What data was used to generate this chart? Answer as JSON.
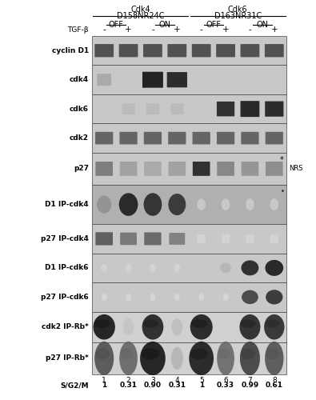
{
  "fig_width": 3.95,
  "fig_height": 5.0,
  "dpi": 100,
  "bg_color": "#ffffff",
  "header": {
    "cdk4_label": "Cdk4",
    "cdk4_sublabel": "D158NR24C",
    "cdk6_label": "Cdk6",
    "cdk6_sublabel": "D163NR31C",
    "off_on_labels": [
      "OFF",
      "ON",
      "OFF",
      "ON"
    ],
    "tgf_label": "TGF-β",
    "tgf_signs": [
      "-",
      "+",
      "-",
      "+",
      "-",
      "+",
      "-",
      "+"
    ]
  },
  "lane_numbers": [
    "1",
    "2",
    "3",
    "4",
    "5",
    "6",
    "7",
    "8"
  ],
  "sg2m_label": "S/G2/M",
  "sg2m_values": [
    "1",
    "0.31",
    "0.90",
    "0.31",
    "1",
    "0.33",
    "0.99",
    "0.61"
  ],
  "nrs_label": "NRS",
  "rows": [
    {
      "label": "cyclin D1",
      "bold": true
    },
    {
      "label": "cdk4",
      "bold": true
    },
    {
      "label": "cdk6",
      "bold": true
    },
    {
      "label": "cdk2",
      "bold": true
    },
    {
      "label": "p27",
      "bold": true
    },
    {
      "label": "D1 IP-cdk4",
      "bold": true
    },
    {
      "label": "p27 IP-cdk4",
      "bold": true
    },
    {
      "label": "D1 IP-cdk6",
      "bold": true
    },
    {
      "label": "p27 IP-cdk6",
      "bold": true
    },
    {
      "label": "cdk2 IP-Rb*",
      "bold": true
    },
    {
      "label": "p27 IP-Rb*",
      "bold": true
    }
  ],
  "row_bgs": [
    "#c8c8c8",
    "#c8c8c8",
    "#c8c8c8",
    "#c8c8c8",
    "#c8c8c8",
    "#b0b0b0",
    "#c8c8c8",
    "#c8c8c8",
    "#c8c8c8",
    "#d0d0d0",
    "#d0d0d0"
  ]
}
